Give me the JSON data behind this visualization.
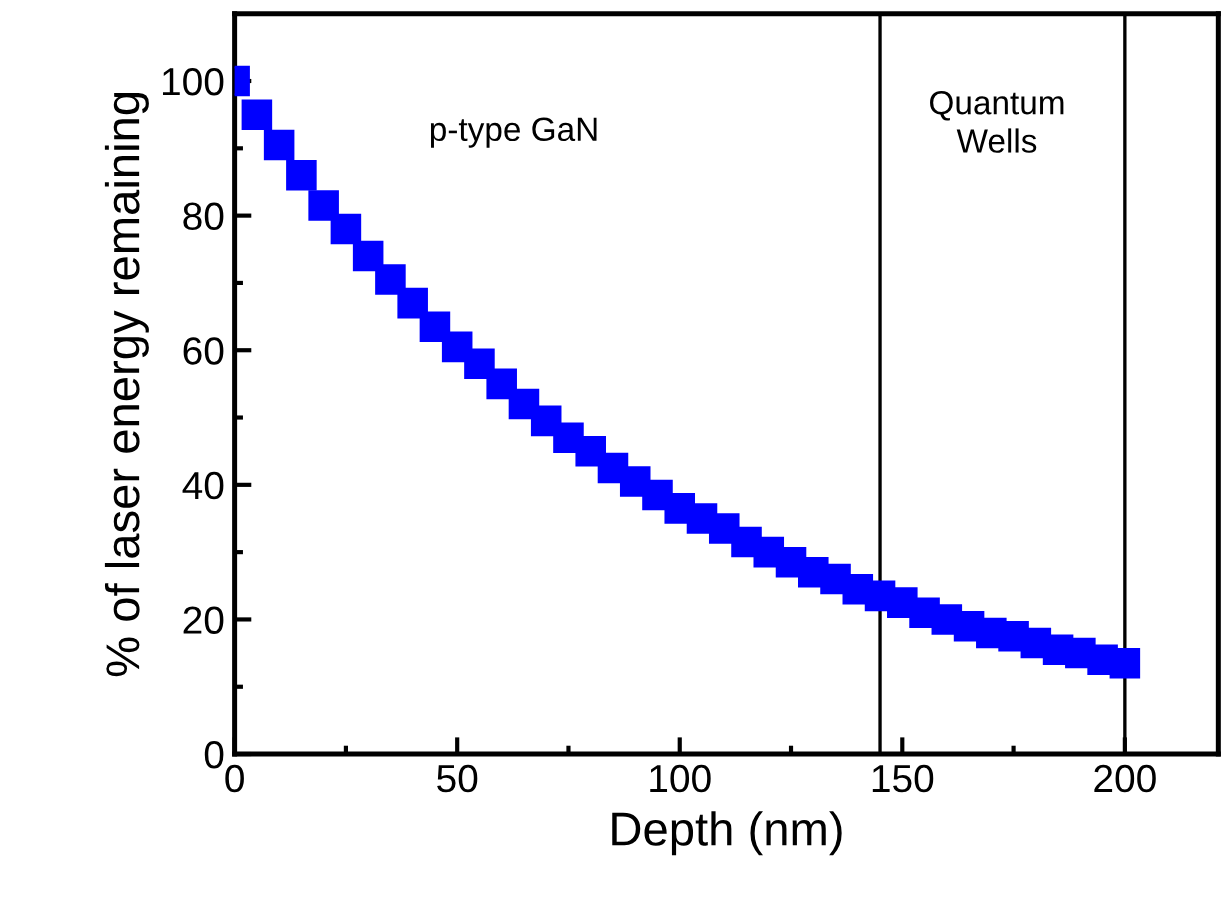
{
  "chart_data": {
    "type": "scatter",
    "xlabel": "Depth (nm)",
    "ylabel": "% of laser energy remaining",
    "x": [
      0,
      5,
      10,
      15,
      20,
      25,
      30,
      35,
      40,
      45,
      50,
      55,
      60,
      65,
      70,
      75,
      80,
      85,
      90,
      95,
      100,
      105,
      110,
      115,
      120,
      125,
      130,
      135,
      140,
      145,
      150,
      155,
      160,
      165,
      170,
      175,
      180,
      185,
      190,
      195,
      200
    ],
    "series": [
      {
        "color": "#0000ff",
        "values": [
          100,
          95,
          90.5,
          86,
          81.5,
          78,
          74,
          70.5,
          67,
          63.5,
          60.5,
          58,
          55,
          52,
          49.5,
          47,
          45,
          42.5,
          40.5,
          38.5,
          36.5,
          35,
          33.5,
          31.5,
          30,
          28.5,
          27,
          26,
          24.5,
          23.5,
          22.5,
          21,
          20,
          19,
          18,
          17.5,
          16.5,
          15.5,
          15,
          14,
          13.5
        ]
      }
    ],
    "marker": "square",
    "xlim": [
      0,
      221
    ],
    "ylim": [
      0,
      110
    ],
    "xticks": [
      0,
      50,
      100,
      150,
      200
    ],
    "yticks": [
      0,
      20,
      40,
      60,
      80,
      100
    ],
    "grid": false,
    "legend": false,
    "ref_lines": [
      {
        "axis": "x",
        "value": 145,
        "color": "#000000"
      },
      {
        "axis": "x",
        "value": 200,
        "color": "#000000"
      }
    ],
    "annotations": [
      "p-type GaN",
      "Quantum\nWells"
    ]
  }
}
